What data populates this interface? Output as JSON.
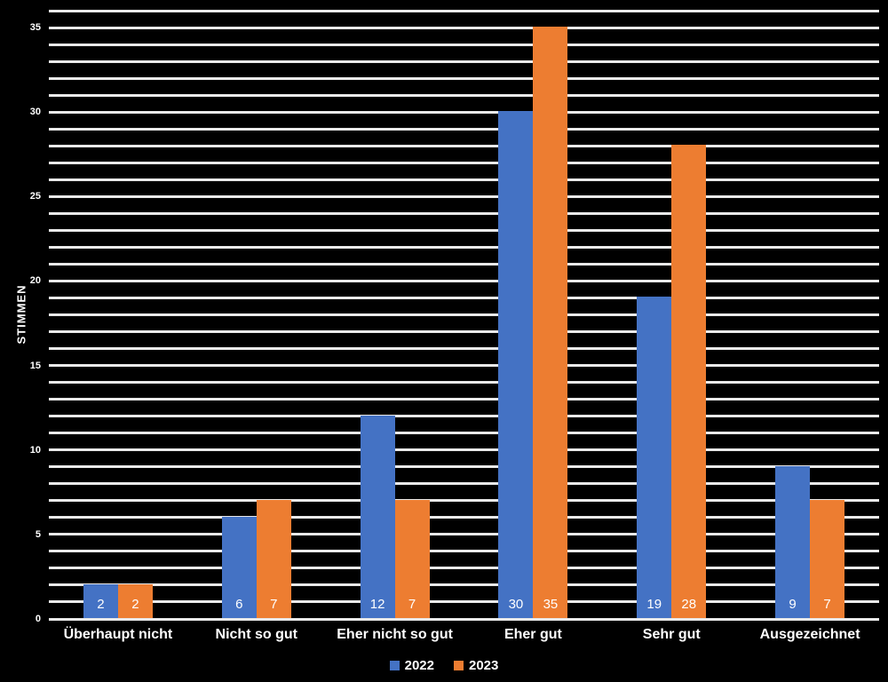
{
  "chart_data": {
    "type": "bar",
    "title": "",
    "categories": [
      "Überhaupt nicht",
      "Nicht so gut",
      "Eher nicht so gut",
      "Eher gut",
      "Sehr gut",
      "Ausgezeichnet"
    ],
    "series": [
      {
        "name": "2022",
        "color": "#4472C4",
        "values": [
          2,
          6,
          12,
          30,
          19,
          9
        ]
      },
      {
        "name": "2023",
        "color": "#ED7D31",
        "values": [
          2,
          7,
          7,
          35,
          28,
          7
        ]
      }
    ],
    "xlabel": "",
    "ylabel": "STIMMEN",
    "ylim": [
      0,
      36
    ],
    "y_major_ticks": [
      0,
      5,
      10,
      15,
      20,
      25,
      30,
      35
    ],
    "gridline_step": 1,
    "grid": "horizontal",
    "legend_position": "bottom",
    "data_labels": "inside-base",
    "colors": {
      "background": "#000000",
      "gridline": "#E9E9E9",
      "text": "#FFFFFF",
      "series_2022": "#4472C4",
      "series_2023": "#ED7D31"
    }
  }
}
